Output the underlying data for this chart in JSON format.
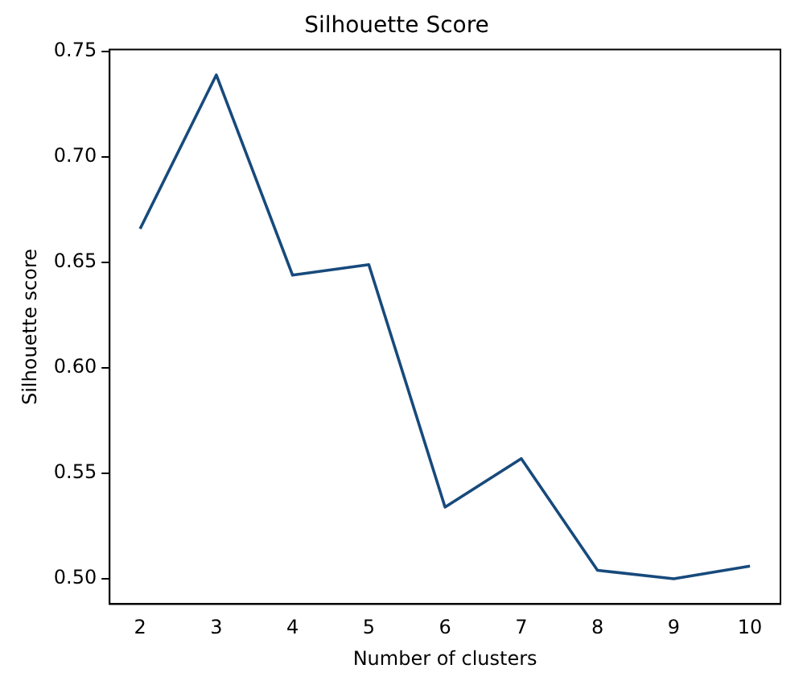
{
  "chart_data": {
    "type": "line",
    "title": "Silhouette Score",
    "xlabel": "Number of clusters",
    "ylabel": "Silhouette score",
    "x": [
      2,
      3,
      4,
      5,
      6,
      7,
      8,
      9,
      10
    ],
    "series": [
      {
        "color": "#174a7c",
        "values": [
          0.666,
          0.739,
          0.644,
          0.649,
          0.534,
          0.557,
          0.504,
          0.5,
          0.506
        ]
      }
    ],
    "xlim": [
      1.6,
      10.4
    ],
    "xticks": [
      2,
      3,
      4,
      5,
      6,
      7,
      8,
      9,
      10
    ],
    "ylim": [
      0.488,
      0.751
    ],
    "yticks": [
      {
        "value": 0.5,
        "label": "0.50"
      },
      0.55,
      {
        "value": 0.6,
        "label": "0.60"
      },
      0.65,
      {
        "value": 0.7,
        "label": "0.70"
      },
      0.75
    ],
    "grid": false,
    "legend": false,
    "marker": "none",
    "line_style": "solid"
  }
}
